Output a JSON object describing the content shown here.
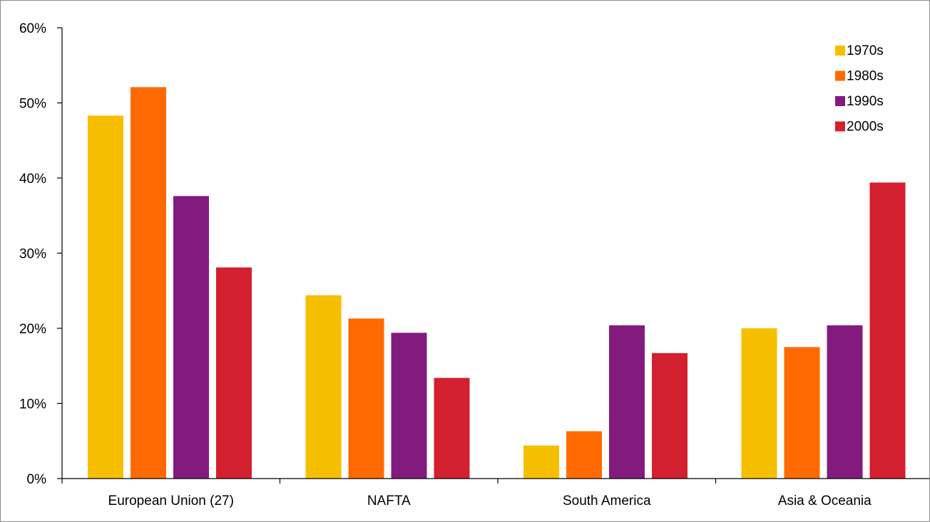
{
  "chart_data": {
    "type": "bar",
    "title": "",
    "xlabel": "",
    "ylabel": "",
    "ylim": [
      0,
      60
    ],
    "y_ticks": [
      "0%",
      "10%",
      "20%",
      "30%",
      "40%",
      "50%",
      "60%"
    ],
    "y_tick_values": [
      0,
      10,
      20,
      30,
      40,
      50,
      60
    ],
    "categories": [
      "European Union (27)",
      "NAFTA",
      "South America",
      "Asia & Oceania"
    ],
    "series": [
      {
        "name": "1970s",
        "color": "#F5BF00",
        "values": [
          48.3,
          24.4,
          4.4,
          20.0
        ]
      },
      {
        "name": "1980s",
        "color": "#FF6A00",
        "values": [
          52.1,
          21.3,
          6.3,
          17.5
        ]
      },
      {
        "name": "1990s",
        "color": "#831B7E",
        "values": [
          37.6,
          19.4,
          20.4,
          20.4
        ]
      },
      {
        "name": "2000s",
        "color": "#D2202E",
        "values": [
          28.1,
          13.4,
          16.7,
          39.4
        ]
      }
    ],
    "grid": false,
    "legend_position": "top-right"
  }
}
